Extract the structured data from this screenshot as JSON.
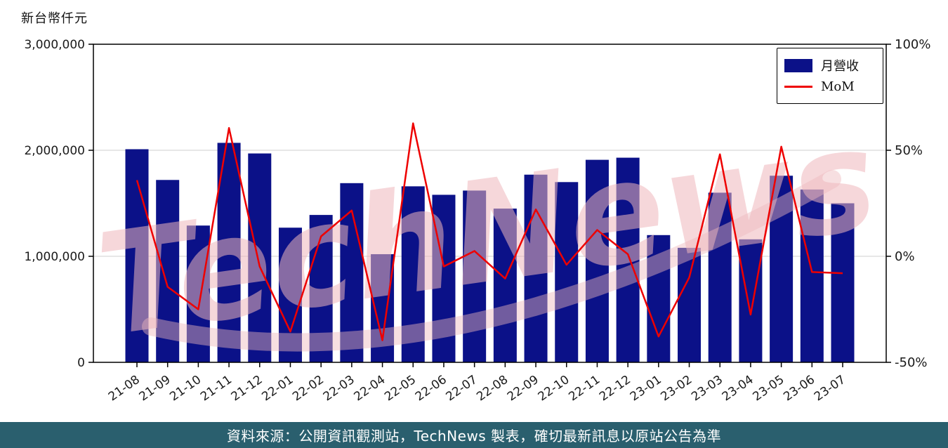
{
  "page": {
    "y_axis_unit_label": "新台幣仟元",
    "watermark": "TechNews",
    "footer_text": "資料來源：公開資訊觀測站，TechNews 製表，確切最新訊息以原站公告為準"
  },
  "legend": {
    "series1": "月營收",
    "series2": "MoM"
  },
  "colors": {
    "bar": "#0b1188",
    "line": "#ee0000",
    "grid": "#cfcfcf",
    "axis": "#000000",
    "tick_text": "#1a1a1a",
    "footer_bg": "#2a5f6e",
    "watermark": "#eeb7bc"
  },
  "chart_data": {
    "type": "bar",
    "subtype": "bar+line dual axis",
    "categories": [
      "21-08",
      "21-09",
      "21-10",
      "21-11",
      "21-12",
      "22-01",
      "22-02",
      "22-03",
      "22-04",
      "22-05",
      "22-06",
      "22-07",
      "22-08",
      "22-09",
      "22-10",
      "22-11",
      "22-12",
      "23-01",
      "23-02",
      "23-03",
      "23-04",
      "23-05",
      "23-06",
      "23-07"
    ],
    "series": [
      {
        "name": "月營收",
        "type": "bar",
        "axis": "left",
        "values": [
          2010000,
          1720000,
          1290000,
          2070000,
          1970000,
          1270000,
          1390000,
          1690000,
          1020000,
          1660000,
          1580000,
          1620000,
          1450000,
          1770000,
          1700000,
          1910000,
          1930000,
          1200000,
          1080000,
          1600000,
          1160000,
          1760000,
          1630000,
          1500000
        ]
      },
      {
        "name": "MoM",
        "type": "line",
        "axis": "right",
        "values": [
          35.9,
          -14.4,
          -25.0,
          60.5,
          -4.8,
          -35.5,
          9.4,
          21.6,
          -39.6,
          62.7,
          -4.8,
          2.5,
          -10.5,
          22.1,
          -4.0,
          12.4,
          1.0,
          -37.8,
          -10.0,
          48.1,
          -27.5,
          51.7,
          -7.4,
          -8.0
        ]
      }
    ],
    "title": "",
    "xlabel": "",
    "ylabel_left": "新台幣仟元",
    "ylabel_right": "%",
    "left_axis": {
      "min": 0,
      "max": 3000000,
      "grid_values": [
        1000000,
        2000000
      ],
      "ticks": [
        {
          "value": 0,
          "label": "0"
        },
        {
          "value": 1000000,
          "label": "1,000,000"
        },
        {
          "value": 2000000,
          "label": "2,000,000"
        },
        {
          "value": 3000000,
          "label": "3,000,000"
        }
      ]
    },
    "right_axis": {
      "min": -50,
      "max": 100,
      "ticks": [
        {
          "value": -50,
          "label": "-50%"
        },
        {
          "value": 0,
          "label": "0%"
        },
        {
          "value": 50,
          "label": "50%"
        },
        {
          "value": 100,
          "label": "100%"
        }
      ]
    },
    "legend_position": "upper right",
    "grid": "horizontal"
  }
}
